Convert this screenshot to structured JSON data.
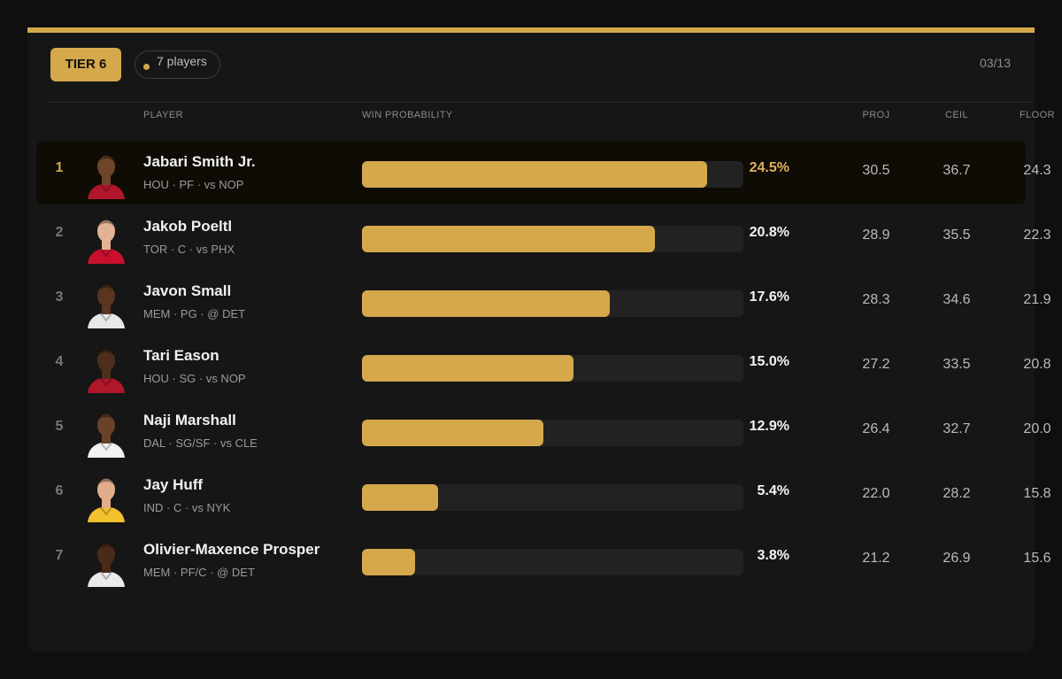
{
  "header": {
    "tier_label": "TIER 6",
    "count_label": "7 players",
    "date": "03/13"
  },
  "columns": {
    "player": "PLAYER",
    "win_probability": "WIN PROBABILITY",
    "proj": "PROJ",
    "ceil": "CEIL",
    "floor": "FLOOR"
  },
  "colors": {
    "accent": "#d4a84b",
    "background": "#0f0f0f",
    "card": "#161616"
  },
  "players": [
    {
      "rank": "1",
      "name": "Jabari Smith Jr.",
      "team": "HOU",
      "pos": "PF",
      "opp": "vs NOP",
      "win_pct": 24.5,
      "win_label": "24.5%",
      "proj": "30.5",
      "ceil": "36.7",
      "floor": "24.3",
      "jersey": "#b0172a",
      "skin": "#6e4528"
    },
    {
      "rank": "2",
      "name": "Jakob Poeltl",
      "team": "TOR",
      "pos": "C",
      "opp": "vs PHX",
      "win_pct": 20.8,
      "win_label": "20.8%",
      "proj": "28.9",
      "ceil": "35.5",
      "floor": "22.3",
      "jersey": "#c8102e",
      "skin": "#e3b394"
    },
    {
      "rank": "3",
      "name": "Javon Small",
      "team": "MEM",
      "pos": "PG",
      "opp": "@ DET",
      "win_pct": 17.6,
      "win_label": "17.6%",
      "proj": "28.3",
      "ceil": "34.6",
      "floor": "21.9",
      "jersey": "#e8e8e8",
      "skin": "#5a3520"
    },
    {
      "rank": "4",
      "name": "Tari Eason",
      "team": "HOU",
      "pos": "SG",
      "opp": "vs NOP",
      "win_pct": 15.0,
      "win_label": "15.0%",
      "proj": "27.2",
      "ceil": "33.5",
      "floor": "20.8",
      "jersey": "#b0172a",
      "skin": "#4d2e1c"
    },
    {
      "rank": "5",
      "name": "Naji Marshall",
      "team": "DAL",
      "pos": "SG/SF",
      "opp": "vs CLE",
      "win_pct": 12.9,
      "win_label": "12.9%",
      "proj": "26.4",
      "ceil": "32.7",
      "floor": "20.0",
      "jersey": "#f2f2f2",
      "skin": "#6b4128"
    },
    {
      "rank": "6",
      "name": "Jay Huff",
      "team": "IND",
      "pos": "C",
      "opp": "vs NYK",
      "win_pct": 5.4,
      "win_label": "5.4%",
      "proj": "22.0",
      "ceil": "28.2",
      "floor": "15.8",
      "jersey": "#f2c12e",
      "skin": "#e1ad8c"
    },
    {
      "rank": "7",
      "name": "Olivier-Maxence Prosper",
      "team": "MEM",
      "pos": "PF/C",
      "opp": "@ DET",
      "win_pct": 3.8,
      "win_label": "3.8%",
      "proj": "21.2",
      "ceil": "26.9",
      "floor": "15.6",
      "jersey": "#ebebeb",
      "skin": "#4a2b18"
    }
  ]
}
